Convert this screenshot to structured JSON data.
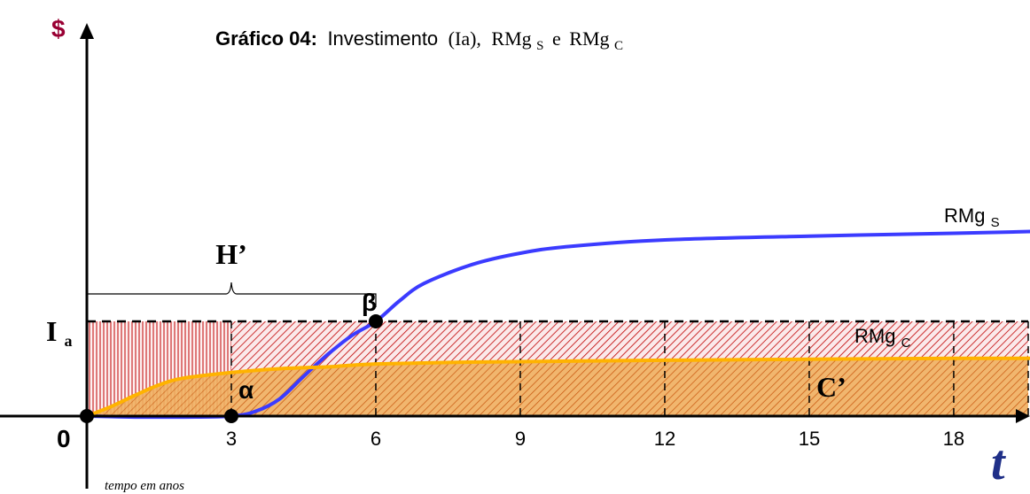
{
  "chart_data": {
    "type": "line",
    "title": {
      "bold": "Gráfico 04:",
      "text": "Investimento",
      "ia": "(Ia),",
      "rmgs_base": "RMg",
      "rmgs_sub": "S",
      "conj": "e",
      "rmgc_base": "RMg",
      "rmgc_sub": "C"
    },
    "y_axis_symbol": "$",
    "x_axis_symbol": "t",
    "xlabel": "tempo em anos",
    "origin_label": "0",
    "x_ticks": [
      3,
      6,
      9,
      12,
      15,
      18
    ],
    "xlim": [
      0,
      20
    ],
    "ia_level": 1.0,
    "ia_label": {
      "base": "I",
      "sub": "a"
    },
    "series": [
      {
        "name": "RMgS",
        "label_base": "RMg",
        "label_sub": "S",
        "color": "#3b3bff",
        "x": [
          0,
          1,
          2,
          3,
          3.5,
          4,
          4.5,
          5,
          5.5,
          6,
          6.5,
          7,
          8,
          9,
          10,
          12,
          15,
          18,
          19.7
        ],
        "y": [
          0,
          -0.01,
          -0.01,
          0,
          0.05,
          0.18,
          0.42,
          0.65,
          0.85,
          1.0,
          1.22,
          1.4,
          1.6,
          1.72,
          1.79,
          1.86,
          1.9,
          1.93,
          1.95
        ]
      },
      {
        "name": "RMgC",
        "label_base": "RMg",
        "label_sub": "C",
        "color": "#ffb300",
        "x": [
          0,
          0.5,
          1,
          1.5,
          2,
          3,
          4,
          5,
          6,
          8,
          10,
          12,
          15,
          18,
          19.7
        ],
        "y": [
          0,
          0.1,
          0.22,
          0.33,
          0.4,
          0.46,
          0.5,
          0.52,
          0.55,
          0.57,
          0.58,
          0.59,
          0.6,
          0.61,
          0.61
        ]
      }
    ],
    "dashed_verticals": [
      3,
      6,
      9,
      12,
      15,
      18
    ],
    "points": [
      {
        "label": "α",
        "x": 3,
        "y": 0
      },
      {
        "label": "β",
        "x": 6,
        "y": 1.0
      },
      {
        "label": "",
        "x": 0,
        "y": 0
      }
    ],
    "brace": {
      "label": "H’",
      "x_start": 0,
      "x_end": 6
    },
    "region_labels": {
      "c_prime": "C’"
    },
    "colors": {
      "axis": "#000000",
      "dollar": "#990033",
      "t_symbol": "#1f2f88",
      "hatch_red": "#c00000",
      "fill_orange": "#f0a040"
    }
  }
}
